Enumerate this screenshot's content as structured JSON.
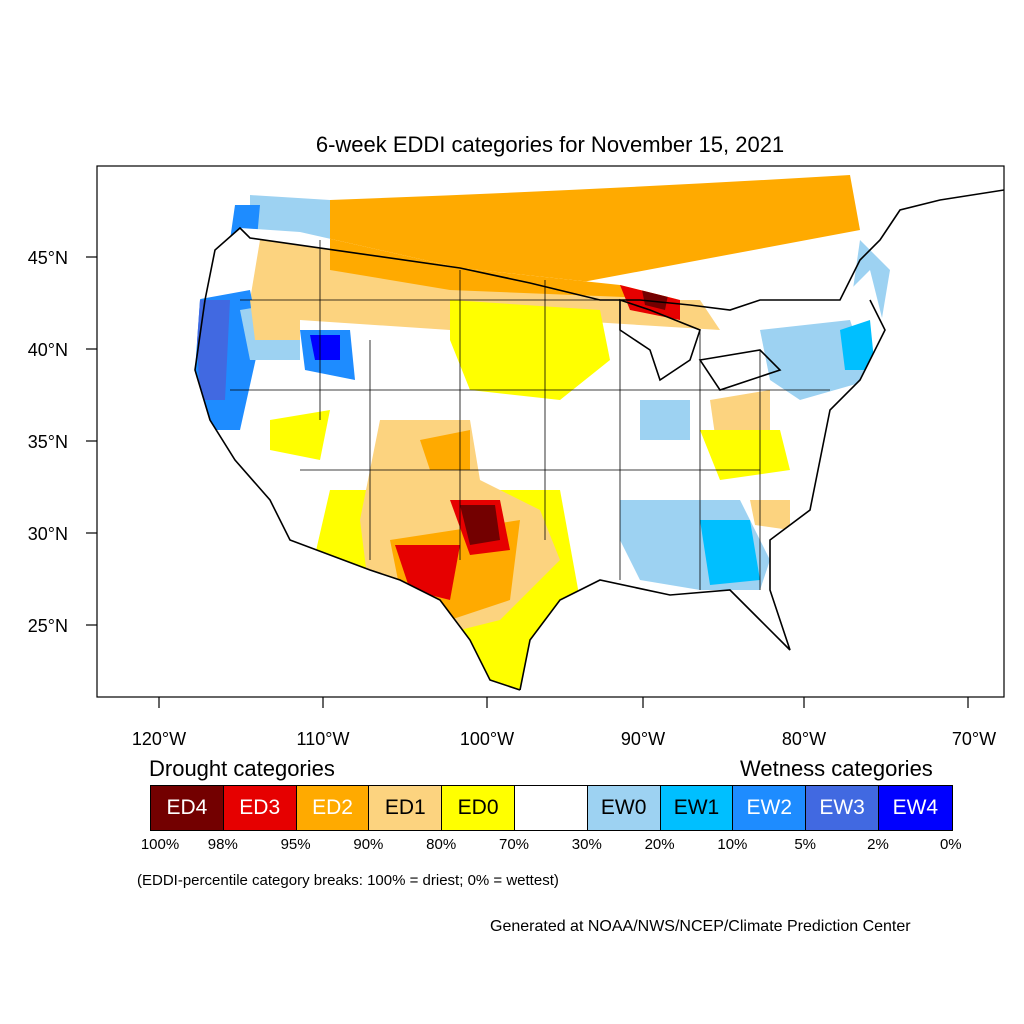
{
  "title": "6-week EDDI categories for November 15, 2021",
  "map": {
    "lon_labels": [
      "120°W",
      "110°W",
      "100°W",
      "90°W",
      "80°W",
      "70°W"
    ],
    "lat_labels": [
      "45°N",
      "40°N",
      "35°N",
      "30°N",
      "25°N"
    ]
  },
  "legend": {
    "drought_heading": "Drought categories",
    "wetness_heading": "Wetness categories",
    "categories": [
      {
        "label": "ED4",
        "color": "#730000",
        "text_color": "#ffffff"
      },
      {
        "label": "ED3",
        "color": "#e60000",
        "text_color": "#ffffff"
      },
      {
        "label": "ED2",
        "color": "#ffaa00",
        "text_color": "#ffffff"
      },
      {
        "label": "ED1",
        "color": "#fcd37f",
        "text_color": "#000000"
      },
      {
        "label": "ED0",
        "color": "#ffff00",
        "text_color": "#000000"
      },
      {
        "label": "",
        "color": "#ffffff",
        "text_color": "#000000"
      },
      {
        "label": "EW0",
        "color": "#9dd2f2",
        "text_color": "#000000"
      },
      {
        "label": "EW1",
        "color": "#00bfff",
        "text_color": "#000000"
      },
      {
        "label": "EW2",
        "color": "#1e8cff",
        "text_color": "#ffffff"
      },
      {
        "label": "EW3",
        "color": "#4169e1",
        "text_color": "#ffffff"
      },
      {
        "label": "EW4",
        "color": "#0000ff",
        "text_color": "#ffffff"
      }
    ],
    "percent_breaks": [
      "100%",
      "98%",
      "95%",
      "90%",
      "80%",
      "70%",
      "30%",
      "20%",
      "10%",
      "5%",
      "2%",
      "0%"
    ],
    "note": "(EDDI-percentile category breaks: 100% = driest; 0% = wettest)"
  },
  "credit": "Generated at NOAA/NWS/NCEP/Climate Prediction Center"
}
